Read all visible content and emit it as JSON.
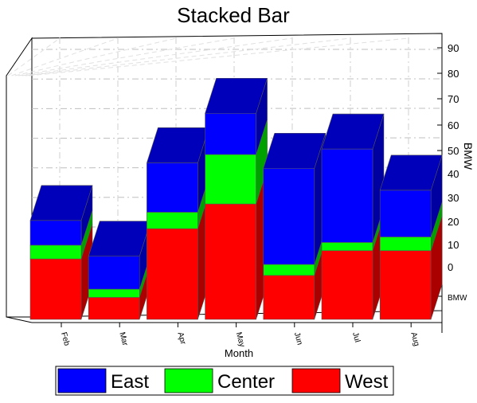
{
  "chart_data": {
    "type": "bar",
    "subtype": "3d-stacked",
    "title": "Stacked Bar",
    "xlabel": "Month",
    "ylabel": "BMW",
    "categories": [
      "Feb",
      "Mar",
      "Apr",
      "May",
      "Jun",
      "Jul",
      "Aug"
    ],
    "series": [
      {
        "name": "West",
        "color": "#ff0000",
        "values": [
          22,
          8,
          33,
          42,
          16,
          25,
          25
        ]
      },
      {
        "name": "Center",
        "color": "#00ff00",
        "values": [
          5,
          3,
          6,
          18,
          4,
          3,
          5
        ]
      },
      {
        "name": "East",
        "color": "#0000ff",
        "values": [
          9,
          12,
          18,
          15,
          35,
          34,
          17
        ]
      }
    ],
    "y_ticks": [
      "90",
      "80",
      "70",
      "60",
      "50",
      "40",
      "30",
      "20",
      "10",
      "0",
      "BMW"
    ],
    "ylim": [
      0,
      90
    ],
    "grid": true,
    "legend_placement": "bottom",
    "legend_order": [
      "East",
      "Center",
      "West"
    ],
    "colors": {
      "top_face": "#0000bb",
      "side_dark_red": "#aa0000",
      "side_dark_green": "#00a000",
      "side_dark_blue": "#0000a0"
    }
  }
}
